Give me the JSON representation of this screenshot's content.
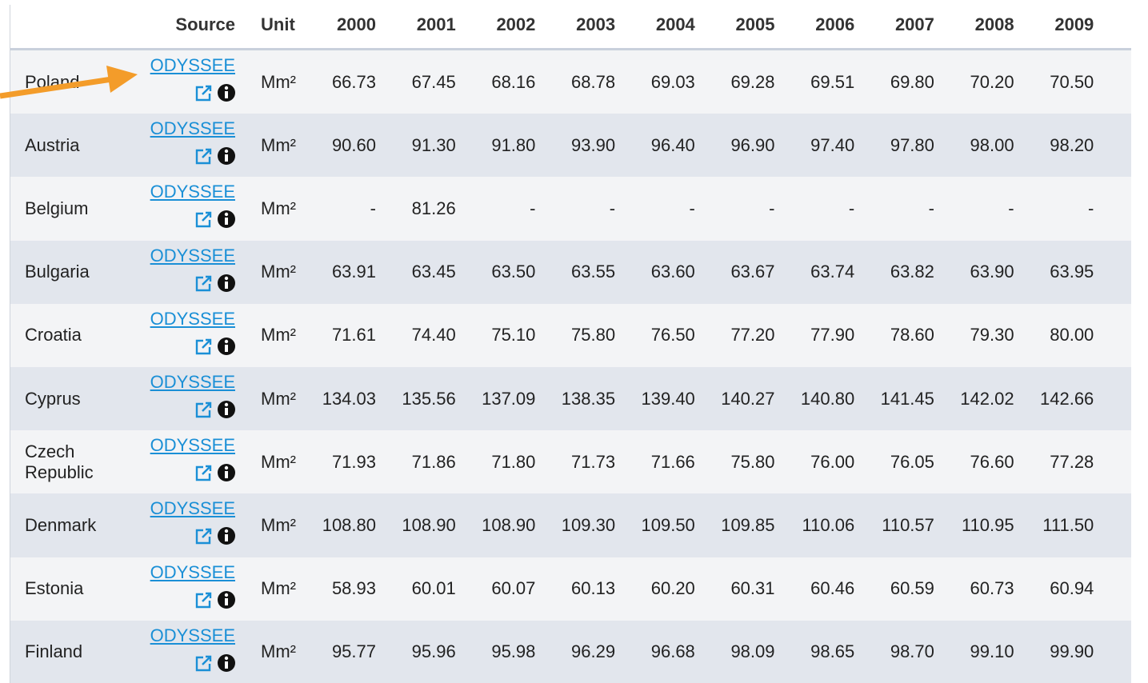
{
  "table": {
    "columns": [
      "Source",
      "Unit",
      "2000",
      "2001",
      "2002",
      "2003",
      "2004",
      "2005",
      "2006",
      "2007",
      "2008",
      "2009"
    ],
    "rows": [
      {
        "country": "Poland",
        "source": "ODYSSEE",
        "unit": "Mm²",
        "values": [
          "66.73",
          "67.45",
          "68.16",
          "68.78",
          "69.03",
          "69.28",
          "69.51",
          "69.80",
          "70.20",
          "70.50"
        ]
      },
      {
        "country": "Austria",
        "source": "ODYSSEE",
        "unit": "Mm²",
        "values": [
          "90.60",
          "91.30",
          "91.80",
          "93.90",
          "96.40",
          "96.90",
          "97.40",
          "97.80",
          "98.00",
          "98.20"
        ]
      },
      {
        "country": "Belgium",
        "source": "ODYSSEE",
        "unit": "Mm²",
        "values": [
          "-",
          "81.26",
          "-",
          "-",
          "-",
          "-",
          "-",
          "-",
          "-",
          "-"
        ]
      },
      {
        "country": "Bulgaria",
        "source": "ODYSSEE",
        "unit": "Mm²",
        "values": [
          "63.91",
          "63.45",
          "63.50",
          "63.55",
          "63.60",
          "63.67",
          "63.74",
          "63.82",
          "63.90",
          "63.95"
        ]
      },
      {
        "country": "Croatia",
        "source": "ODYSSEE",
        "unit": "Mm²",
        "values": [
          "71.61",
          "74.40",
          "75.10",
          "75.80",
          "76.50",
          "77.20",
          "77.90",
          "78.60",
          "79.30",
          "80.00"
        ]
      },
      {
        "country": "Cyprus",
        "source": "ODYSSEE",
        "unit": "Mm²",
        "values": [
          "134.03",
          "135.56",
          "137.09",
          "138.35",
          "139.40",
          "140.27",
          "140.80",
          "141.45",
          "142.02",
          "142.66"
        ]
      },
      {
        "country": "Czech Republic",
        "source": "ODYSSEE",
        "unit": "Mm²",
        "values": [
          "71.93",
          "71.86",
          "71.80",
          "71.73",
          "71.66",
          "75.80",
          "76.00",
          "76.05",
          "76.60",
          "77.28"
        ]
      },
      {
        "country": "Denmark",
        "source": "ODYSSEE",
        "unit": "Mm²",
        "values": [
          "108.80",
          "108.90",
          "108.90",
          "109.30",
          "109.50",
          "109.85",
          "110.06",
          "110.57",
          "110.95",
          "111.50"
        ]
      },
      {
        "country": "Estonia",
        "source": "ODYSSEE",
        "unit": "Mm²",
        "values": [
          "58.93",
          "60.01",
          "60.07",
          "60.13",
          "60.20",
          "60.31",
          "60.46",
          "60.59",
          "60.73",
          "60.94"
        ]
      },
      {
        "country": "Finland",
        "source": "ODYSSEE",
        "unit": "Mm²",
        "values": [
          "95.77",
          "95.96",
          "95.98",
          "96.29",
          "96.68",
          "98.09",
          "98.65",
          "98.70",
          "99.10",
          "99.90"
        ]
      }
    ]
  }
}
